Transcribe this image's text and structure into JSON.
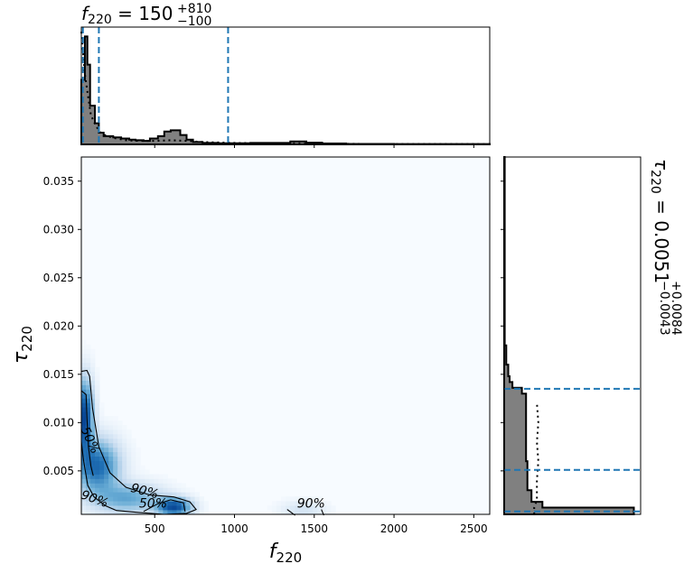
{
  "chart_data": [
    {
      "type": "histogram",
      "title_main": "f",
      "title_sub": "220",
      "title_eq": " = 150",
      "title_sup": "+810",
      "title_inf": "−100",
      "xlim": [
        40,
        2600
      ],
      "bins": [
        [
          40,
          62,
          0.55
        ],
        [
          62,
          78,
          0.92
        ],
        [
          78,
          95,
          0.68
        ],
        [
          95,
          125,
          0.33
        ],
        [
          125,
          150,
          0.18
        ],
        [
          150,
          180,
          0.1
        ],
        [
          180,
          240,
          0.07
        ],
        [
          240,
          290,
          0.06
        ],
        [
          290,
          340,
          0.05
        ],
        [
          340,
          380,
          0.04
        ],
        [
          380,
          430,
          0.035
        ],
        [
          430,
          470,
          0.03
        ],
        [
          470,
          520,
          0.05
        ],
        [
          520,
          560,
          0.07
        ],
        [
          560,
          600,
          0.11
        ],
        [
          600,
          660,
          0.12
        ],
        [
          660,
          700,
          0.08
        ],
        [
          700,
          740,
          0.04
        ],
        [
          740,
          800,
          0.02
        ],
        [
          800,
          900,
          0.012
        ],
        [
          900,
          1100,
          0.01
        ],
        [
          1100,
          1350,
          0.012
        ],
        [
          1350,
          1450,
          0.025
        ],
        [
          1450,
          1550,
          0.015
        ],
        [
          1550,
          1700,
          0.008
        ],
        [
          1700,
          2000,
          0.004
        ],
        [
          2000,
          2600,
          0.003
        ]
      ],
      "prior_x": [
        40,
        62,
        78,
        100,
        130,
        160,
        200,
        260,
        320,
        400,
        500,
        600,
        700,
        800,
        1000,
        1300,
        1600,
        2000,
        2600
      ],
      "prior_y": [
        0.96,
        0.6,
        0.45,
        0.25,
        0.16,
        0.1,
        0.07,
        0.05,
        0.035,
        0.03,
        0.03,
        0.035,
        0.03,
        0.02,
        0.012,
        0.008,
        0.005,
        0.003,
        0.002
      ],
      "quantiles": [
        50,
        150,
        960
      ]
    },
    {
      "type": "heatmap",
      "xlabel_main": "f",
      "xlabel_sub": "220",
      "ylabel_main": "τ",
      "ylabel_sub": "220",
      "xlim": [
        40,
        2600
      ],
      "ylim": [
        0.0005,
        0.0375
      ],
      "xticks": [
        500,
        1000,
        1500,
        2000,
        2500
      ],
      "xticklabels": [
        "500",
        "1000",
        "1500",
        "2000",
        "2500"
      ],
      "yticks": [
        0.005,
        0.01,
        0.015,
        0.02,
        0.025,
        0.03,
        0.035
      ],
      "yticklabels": [
        "0.005",
        "0.010",
        "0.015",
        "0.020",
        "0.025",
        "0.030",
        "0.035"
      ],
      "density_blobs": [
        {
          "x": 60,
          "y": 0.0105,
          "sx": 35,
          "sy": 0.0025,
          "w": 1.0
        },
        {
          "x": 140,
          "y": 0.0055,
          "sx": 90,
          "sy": 0.0018,
          "w": 0.75
        },
        {
          "x": 330,
          "y": 0.0022,
          "sx": 140,
          "sy": 0.001,
          "w": 0.45
        },
        {
          "x": 620,
          "y": 0.0013,
          "sx": 70,
          "sy": 0.0006,
          "w": 0.95
        },
        {
          "x": 1430,
          "y": 0.001,
          "sx": 90,
          "sy": 0.0006,
          "w": 0.12
        }
      ],
      "contours": [
        {
          "label": "90%",
          "points": [
            [
              40,
              0.0153
            ],
            [
              75,
              0.0154
            ],
            [
              92,
              0.0148
            ],
            [
              110,
              0.0115
            ],
            [
              150,
              0.0075
            ],
            [
              220,
              0.0048
            ],
            [
              320,
              0.0033
            ],
            [
              470,
              0.0025
            ],
            [
              620,
              0.0023
            ],
            [
              720,
              0.0018
            ],
            [
              760,
              0.001
            ],
            [
              700,
              0.0006
            ],
            [
              560,
              0.0005
            ],
            [
              400,
              0.0007
            ],
            [
              260,
              0.0009
            ],
            [
              190,
              0.0014
            ],
            [
              120,
              0.0023
            ],
            [
              80,
              0.0035
            ],
            [
              55,
              0.006
            ],
            [
              40,
              0.008
            ]
          ]
        },
        {
          "label": "50%",
          "points": [
            [
              40,
              0.0133
            ],
            [
              70,
              0.0129
            ],
            [
              75,
              0.0105
            ],
            [
              85,
              0.0075
            ],
            [
              100,
              0.0055
            ],
            [
              115,
              0.0045
            ]
          ]
        },
        {
          "label": "50%",
          "points": [
            [
              430,
              0.0008
            ],
            [
              520,
              0.0016
            ],
            [
              600,
              0.002
            ],
            [
              680,
              0.0017
            ],
            [
              690,
              0.0008
            ]
          ]
        },
        {
          "label": "90%",
          "points": [
            [
              1330,
              0.001
            ],
            [
              1380,
              0.0004
            ]
          ]
        },
        {
          "label": "",
          "points": [
            [
              1545,
              0.001
            ],
            [
              1560,
              0.0004
            ]
          ]
        }
      ],
      "contour_labels": [
        {
          "text": "50%",
          "x": 72,
          "y": 0.008,
          "rot": 65
        },
        {
          "text": "90%",
          "x": 115,
          "y": 0.0017,
          "rot": 20
        },
        {
          "text": "90%",
          "x": 430,
          "y": 0.0025,
          "rot": 15
        },
        {
          "text": "50%",
          "x": 490,
          "y": 0.0012,
          "rot": 0
        },
        {
          "text": "90%",
          "x": 1480,
          "y": 0.0012,
          "rot": 0
        }
      ]
    },
    {
      "type": "histogram-horizontal",
      "title_main": "τ",
      "title_sub": "220",
      "title_eq": " = 0.0051",
      "title_sup": "+0.0084",
      "title_inf": "−0.0043",
      "ylim": [
        0.0005,
        0.0375
      ],
      "bins": [
        [
          0.0005,
          0.0012,
          0.95
        ],
        [
          0.0012,
          0.0018,
          0.28
        ],
        [
          0.0018,
          0.003,
          0.2
        ],
        [
          0.003,
          0.006,
          0.17
        ],
        [
          0.006,
          0.01,
          0.16
        ],
        [
          0.01,
          0.013,
          0.16
        ],
        [
          0.013,
          0.0136,
          0.13
        ],
        [
          0.0136,
          0.0142,
          0.06
        ],
        [
          0.0142,
          0.0148,
          0.04
        ],
        [
          0.0148,
          0.016,
          0.03
        ],
        [
          0.016,
          0.018,
          0.015
        ],
        [
          0.018,
          0.0375,
          0.004
        ]
      ],
      "prior_y": [
        0.0005,
        0.0012,
        0.002,
        0.004,
        0.006,
        0.008,
        0.01,
        0.012,
        0.0135,
        0.015,
        0.02,
        0.0375
      ],
      "prior_x": [
        0.22,
        0.22,
        0.24,
        0.24,
        0.25,
        0.24,
        0.25,
        0.24,
        0.0,
        0.0,
        0.0,
        0.0
      ],
      "quantiles": [
        0.0008,
        0.0051,
        0.0135
      ]
    }
  ]
}
